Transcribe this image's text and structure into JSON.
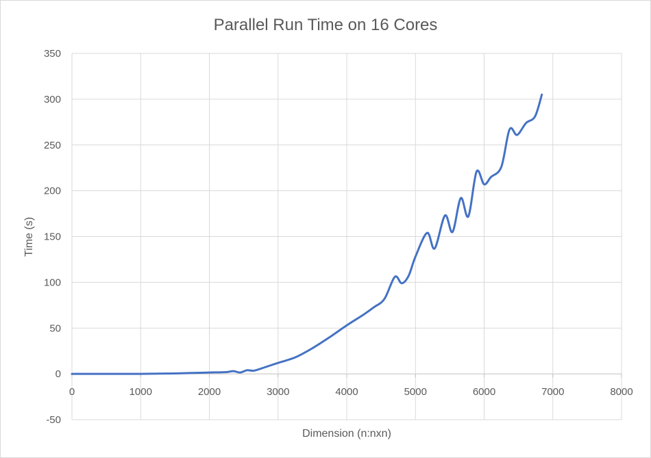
{
  "chart_data": {
    "type": "line",
    "title": "Parallel Run Time on 16 Cores",
    "xlabel": "Dimension (n:nxn)",
    "ylabel": "Time (s)",
    "xlim": [
      0,
      8000
    ],
    "ylim": [
      -50,
      350
    ],
    "x_ticks": [
      0,
      1000,
      2000,
      3000,
      4000,
      5000,
      6000,
      7000,
      8000
    ],
    "y_ticks": [
      -50,
      0,
      50,
      100,
      150,
      200,
      250,
      300,
      350
    ],
    "x_tick_labels": [
      "0",
      "1000",
      "2000",
      "3000",
      "4000",
      "5000",
      "6000",
      "7000",
      "8000"
    ],
    "y_tick_labels": [
      "-50",
      "0",
      "50",
      "100",
      "150",
      "200",
      "250",
      "300",
      "350"
    ],
    "grid": true,
    "smooth": true,
    "series_color": "#4472c4",
    "series": [
      {
        "x": [
          0,
          500,
          1000,
          1250,
          1500,
          1750,
          2000,
          2250,
          2350,
          2450,
          2550,
          2650,
          2800,
          3000,
          3250,
          3500,
          3750,
          4000,
          4250,
          4400,
          4550,
          4700,
          4800,
          4900,
          5000,
          5170,
          5280,
          5430,
          5540,
          5660,
          5770,
          5890,
          6000,
          6100,
          6250,
          6370,
          6480,
          6610,
          6740,
          6840
        ],
        "y": [
          0,
          0,
          0,
          0.3,
          0.5,
          1,
          1.5,
          2,
          3,
          1.5,
          4,
          3.5,
          7,
          12,
          18,
          28,
          40,
          53,
          65,
          73,
          82,
          106,
          99,
          107,
          128,
          154,
          137,
          173,
          155,
          192,
          172,
          221,
          207,
          215,
          226,
          267,
          261,
          274,
          281,
          305
        ]
      }
    ]
  }
}
